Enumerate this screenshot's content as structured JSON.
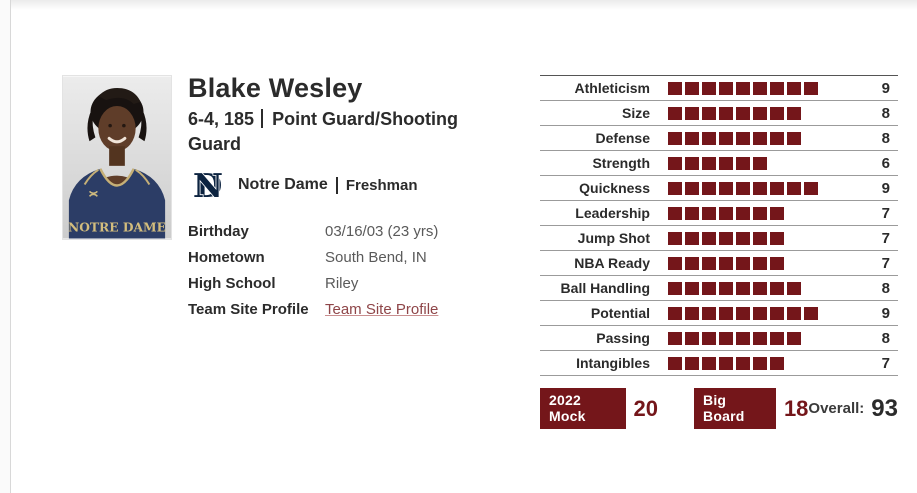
{
  "player": {
    "name": "Blake Wesley",
    "measurements": "6-4, 185",
    "position": "Point Guard/Shooting Guard",
    "team": "Notre Dame",
    "class_year": "Freshman",
    "jersey_text": "NOTRE DAME"
  },
  "info": {
    "rows": [
      {
        "label": "Birthday",
        "value": "03/16/03 (23 yrs)",
        "is_link": false
      },
      {
        "label": "Hometown",
        "value": "South Bend, IN",
        "is_link": false
      },
      {
        "label": "High School",
        "value": "Riley",
        "is_link": false
      },
      {
        "label": "Team Site Profile",
        "value": "Team Site Profile",
        "is_link": true
      }
    ]
  },
  "chart_data": {
    "type": "bar",
    "title": "Player skill ratings (filled squares out of 10)",
    "categories": [
      "Athleticism",
      "Size",
      "Defense",
      "Strength",
      "Quickness",
      "Leadership",
      "Jump Shot",
      "NBA Ready",
      "Ball Handling",
      "Potential",
      "Passing",
      "Intangibles"
    ],
    "values": [
      9,
      8,
      8,
      6,
      9,
      7,
      7,
      7,
      8,
      9,
      8,
      7
    ],
    "xlabel": "",
    "ylabel": "",
    "ylim": [
      0,
      10
    ],
    "legend": "none",
    "grid": "row-dividers",
    "bar_color": "#74161a"
  },
  "footer": {
    "mock_label": "2022 Mock",
    "mock_value": "20",
    "big_board_label": "Big Board",
    "big_board_value": "18",
    "overall_label": "Overall:",
    "overall_value": "93"
  },
  "colors": {
    "maroon": "#74161a",
    "navy": "#0c2340",
    "text_dark": "#2b2b2b",
    "text_gray": "#5a5a5a",
    "divider": "#9b9b9b",
    "link": "#8e4548"
  }
}
